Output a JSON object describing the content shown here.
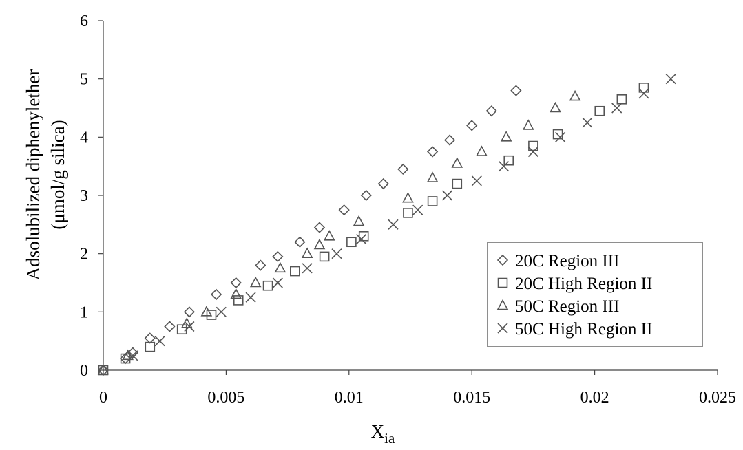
{
  "chart_data": {
    "type": "scatter",
    "xlabel": "X",
    "xlabel_sub": "ia",
    "ylabel": [
      "Adsolubilized diphenylether",
      "(μmol/g silica)"
    ],
    "xlim": [
      0,
      0.025
    ],
    "ylim": [
      0,
      6
    ],
    "xticks": [
      0,
      0.005,
      0.01,
      0.015,
      0.02,
      0.025
    ],
    "xtick_labels": [
      "0",
      "0.005",
      "0.01",
      "0.015",
      "0.02",
      "0.025"
    ],
    "yticks": [
      0,
      1,
      2,
      3,
      4,
      5,
      6
    ],
    "ytick_labels": [
      "0",
      "1",
      "2",
      "3",
      "4",
      "5",
      "6"
    ],
    "grid": false,
    "legend_position": "bottom-right",
    "series": [
      {
        "name": "20C Region III",
        "marker": "diamond",
        "x": [
          0.0,
          0.0009,
          0.0012,
          0.0019,
          0.0027,
          0.0035,
          0.0046,
          0.0054,
          0.0064,
          0.0071,
          0.008,
          0.0088,
          0.0098,
          0.0107,
          0.0114,
          0.0122,
          0.0134,
          0.0141,
          0.015,
          0.0158,
          0.0168
        ],
        "y": [
          0.0,
          0.2,
          0.3,
          0.55,
          0.75,
          1.0,
          1.3,
          1.5,
          1.8,
          1.95,
          2.2,
          2.45,
          2.75,
          3.0,
          3.2,
          3.45,
          3.75,
          3.95,
          4.2,
          4.45,
          4.8
        ]
      },
      {
        "name": "20C High Region II",
        "marker": "square",
        "x": [
          0.0,
          0.0009,
          0.0019,
          0.0032,
          0.0044,
          0.0055,
          0.0067,
          0.0078,
          0.009,
          0.0101,
          0.0106,
          0.0124,
          0.0134,
          0.0144,
          0.0165,
          0.0175,
          0.0185,
          0.0202,
          0.0211,
          0.022
        ],
        "y": [
          0.0,
          0.2,
          0.4,
          0.7,
          0.95,
          1.2,
          1.45,
          1.7,
          1.95,
          2.2,
          2.3,
          2.7,
          2.9,
          3.2,
          3.6,
          3.85,
          4.05,
          4.45,
          4.65,
          4.85
        ]
      },
      {
        "name": "50C Region III",
        "marker": "triangle",
        "x": [
          0.0,
          0.001,
          0.0034,
          0.0042,
          0.0054,
          0.0062,
          0.0072,
          0.0083,
          0.0088,
          0.0092,
          0.0104,
          0.0124,
          0.0134,
          0.0144,
          0.0154,
          0.0164,
          0.0173,
          0.0184,
          0.0192
        ],
        "y": [
          0.0,
          0.25,
          0.8,
          1.0,
          1.3,
          1.5,
          1.75,
          2.0,
          2.15,
          2.3,
          2.55,
          2.95,
          3.3,
          3.55,
          3.75,
          4.0,
          4.2,
          4.5,
          4.7
        ]
      },
      {
        "name": "50C High Region II",
        "marker": "x",
        "x": [
          0.0012,
          0.0023,
          0.0035,
          0.0048,
          0.006,
          0.0071,
          0.0083,
          0.0095,
          0.0105,
          0.0118,
          0.0128,
          0.014,
          0.0152,
          0.0163,
          0.0175,
          0.0186,
          0.0197,
          0.0209,
          0.022,
          0.0231
        ],
        "y": [
          0.25,
          0.5,
          0.75,
          1.0,
          1.25,
          1.5,
          1.75,
          2.0,
          2.25,
          2.5,
          2.75,
          3.0,
          3.25,
          3.5,
          3.75,
          4.0,
          4.25,
          4.5,
          4.75,
          5.0
        ]
      }
    ]
  }
}
